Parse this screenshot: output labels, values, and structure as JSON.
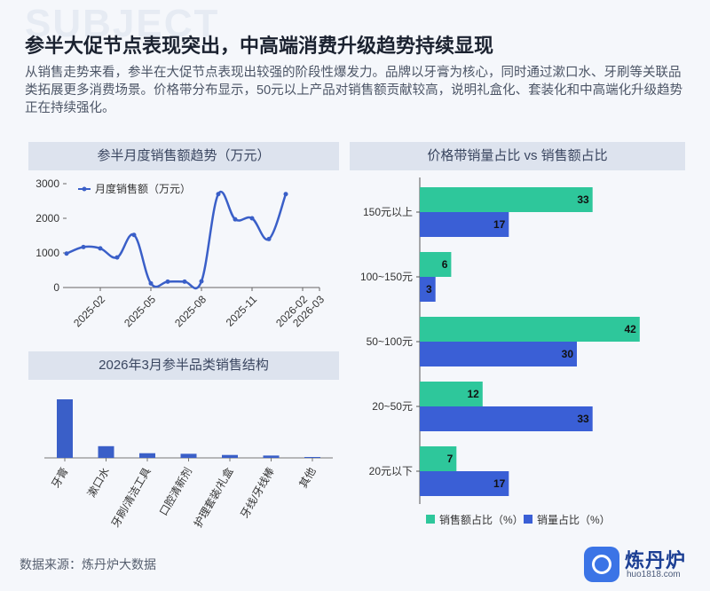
{
  "page": {
    "watermark": "SUBJECT",
    "title": "参半大促节点表现突出，中高端消费升级趋势持续显现",
    "description": "从销售走势来看，参半在大促节点表现出较强的阶段性爆发力。品牌以牙膏为核心，同时通过漱口水、牙刷等关联品类拓展更多消费场景。价格带分布显示，50元以上产品对销售额贡献较高，说明礼盒化、套装化和中高端化升级趋势正在持续强化。",
    "source": "数据来源：炼丹炉大数据",
    "logo_name": "炼丹炉",
    "logo_url": "huo1818.com"
  },
  "chart_data": [
    {
      "id": "monthly-trend",
      "type": "line",
      "title": "参半月度销售额趋势（万元）",
      "legend": "top-left",
      "x_ticks": [
        "2025-02",
        "2025-05",
        "2025-08",
        "2025-11",
        "2026-02",
        "2026-03"
      ],
      "ylim": [
        0,
        3000
      ],
      "y_ticks": [
        0,
        1000,
        2000,
        3000
      ],
      "series": [
        {
          "name": "月度销售额（万元）",
          "color": "#3a5fc8",
          "x": [
            "2024-12",
            "2025-01",
            "2025-02",
            "2025-03",
            "2025-04",
            "2025-05",
            "2025-06",
            "2025-07",
            "2025-08",
            "2025-09",
            "2025-10",
            "2025-11",
            "2025-12",
            "2026-01",
            "2026-02"
          ],
          "values": [
            980,
            1170,
            1130,
            870,
            1520,
            120,
            170,
            170,
            180,
            2700,
            1970,
            2000,
            1400,
            2700,
            null
          ]
        }
      ]
    },
    {
      "id": "category-structure",
      "type": "bar",
      "title": "2026年3月参半品类销售结构",
      "categories": [
        "牙膏",
        "漱口水",
        "牙刷/清洁工具",
        "口腔清新剂",
        "护理套装/礼盒",
        "牙线/牙线棒",
        "其他"
      ],
      "values": [
        100,
        20,
        8,
        7,
        5,
        4,
        1
      ],
      "color": "#3a5fc8"
    },
    {
      "id": "price-band",
      "type": "bar",
      "orientation": "horizontal",
      "title": "价格带销量占比 vs 销售额占比",
      "legend": "bottom",
      "categories": [
        "150元以上",
        "100~150元",
        "50~100元",
        "20~50元",
        "20元以下"
      ],
      "xlim": [
        0,
        50
      ],
      "series": [
        {
          "name": "销售额占比（%）",
          "color": "#2ec79b",
          "values": [
            33,
            6,
            42,
            12,
            7
          ]
        },
        {
          "name": "销量占比（%）",
          "color": "#3a5fd6",
          "values": [
            17,
            3,
            30,
            33,
            17
          ]
        }
      ]
    }
  ]
}
